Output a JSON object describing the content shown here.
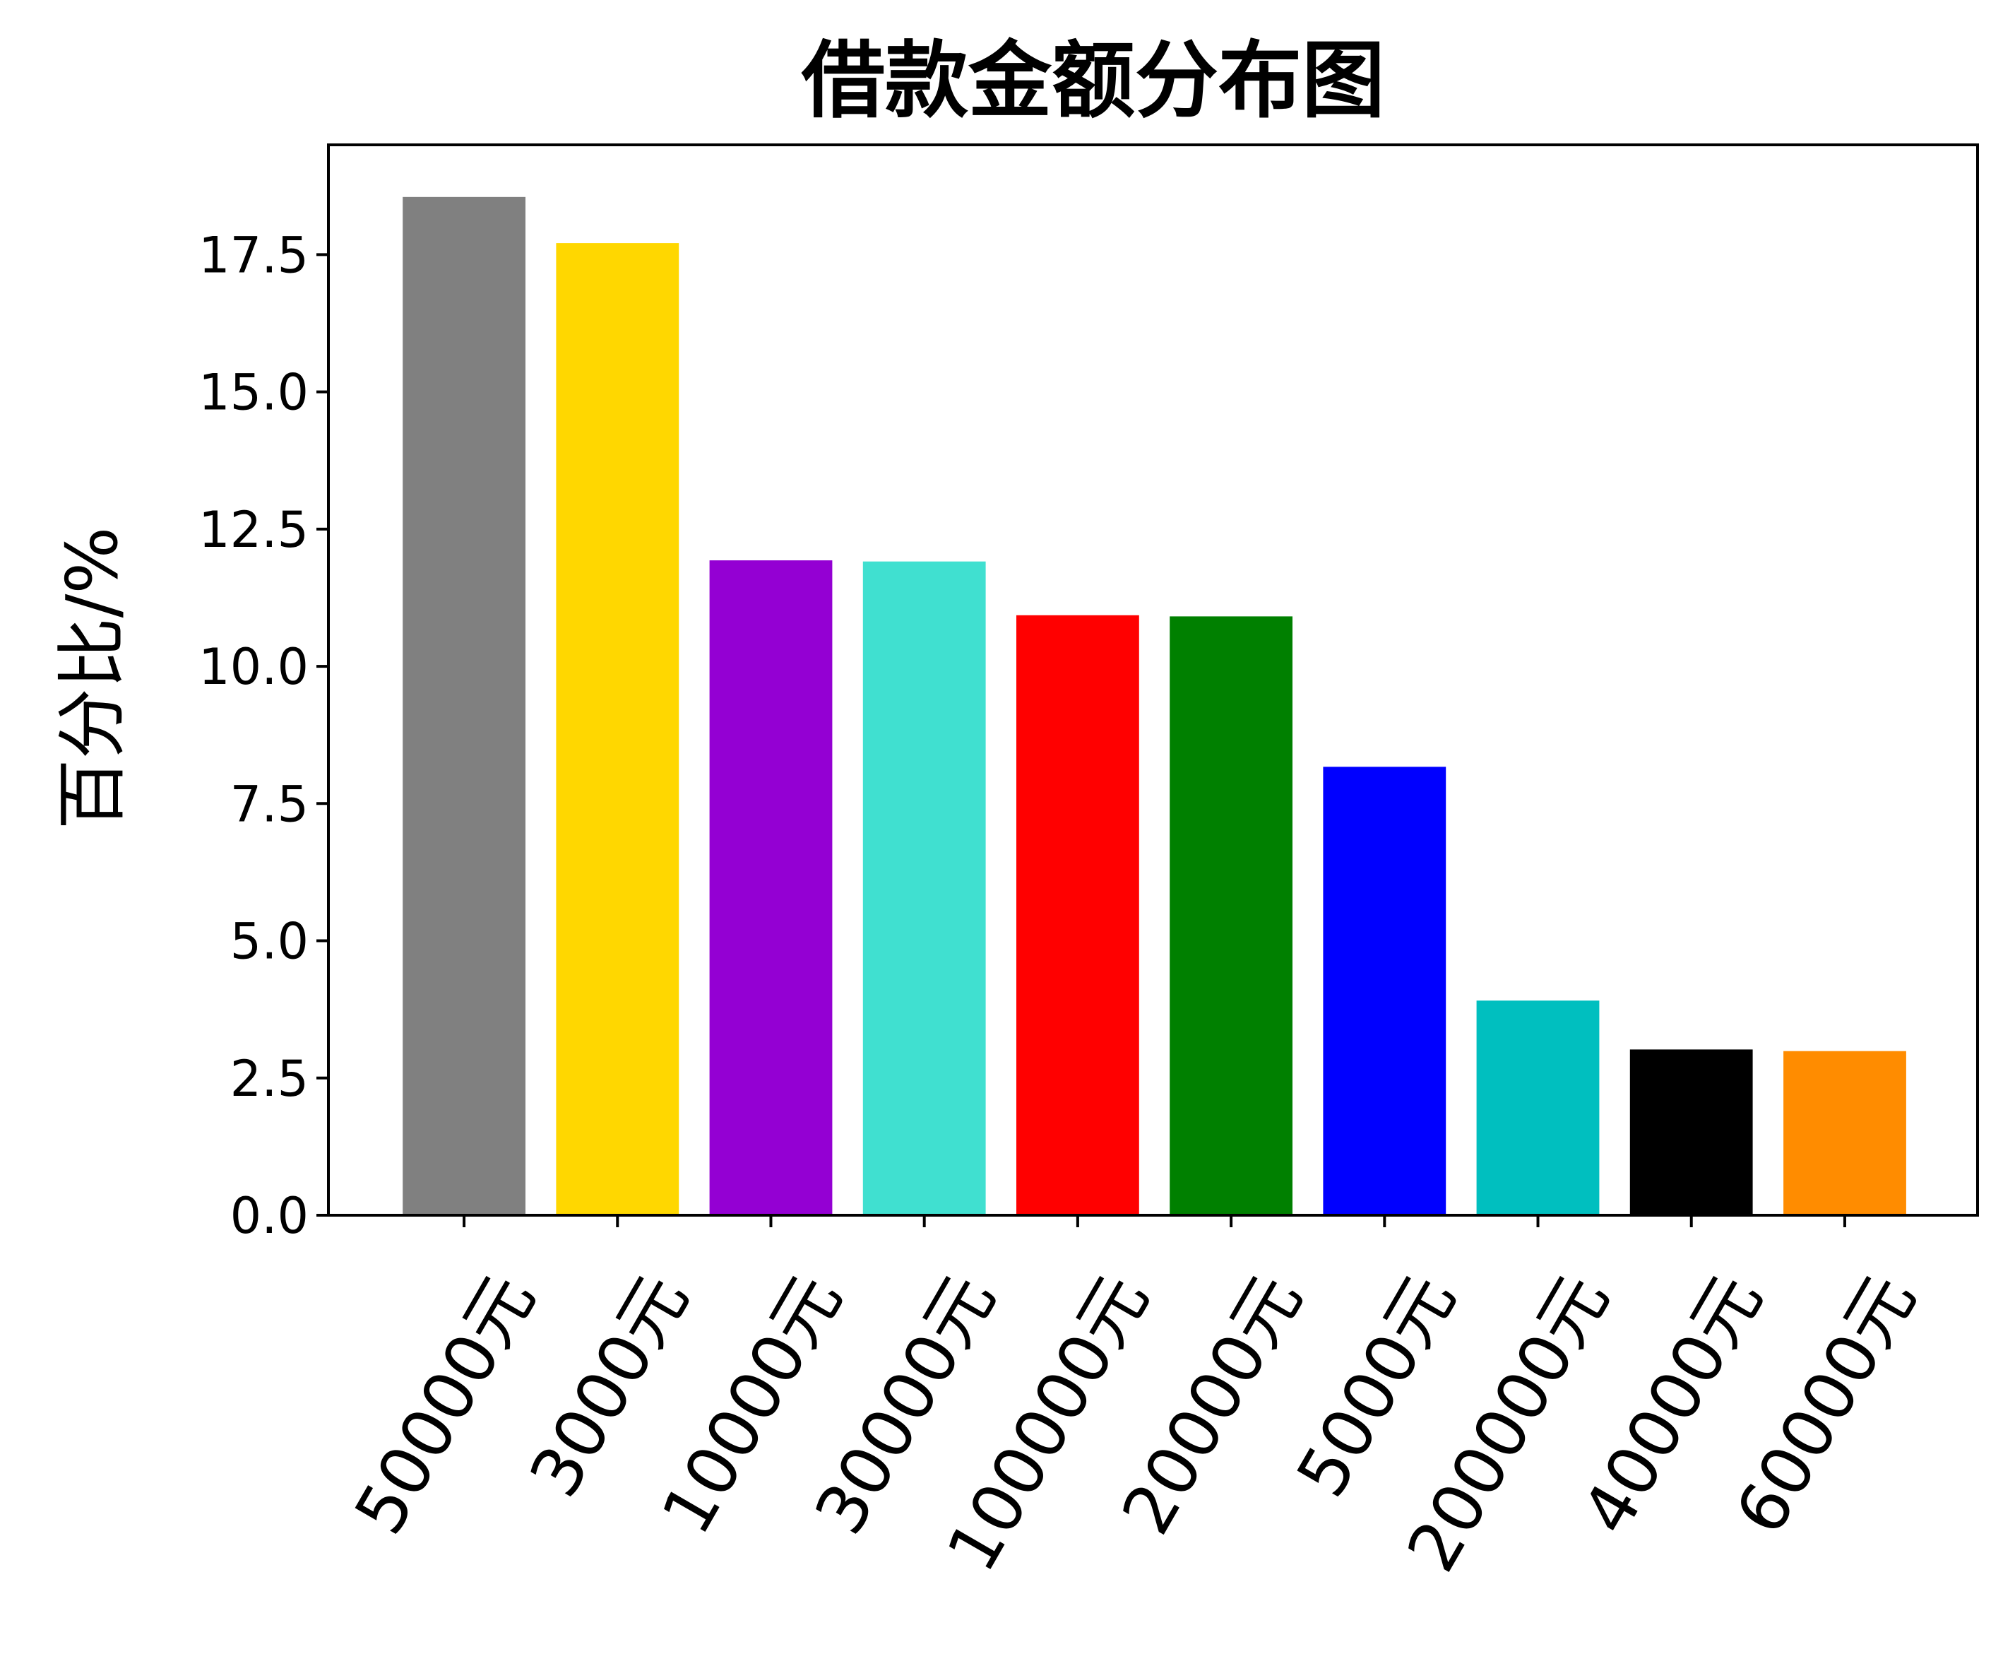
{
  "chart_data": {
    "type": "bar",
    "title": "借款金额分布图",
    "xlabel": "",
    "ylabel": "百分比/%",
    "categories": [
      "50000元",
      "3000元",
      "10000元",
      "30000元",
      "100000元",
      "20000元",
      "5000元",
      "200000元",
      "40000元",
      "60000元"
    ],
    "values": [
      18.55,
      17.71,
      11.93,
      11.91,
      10.93,
      10.91,
      8.17,
      3.91,
      3.02,
      2.99
    ],
    "colors": [
      "#808080",
      "#FFD700",
      "#9400D3",
      "#40E0D0",
      "#FF0000",
      "#008000",
      "#0000FF",
      "#00BFBF",
      "#000000",
      "#FF8C00"
    ],
    "ylim": [
      0,
      19.5
    ],
    "yticks": [
      0.0,
      2.5,
      5.0,
      7.5,
      10.0,
      12.5,
      15.0,
      17.5
    ],
    "ytick_labels": [
      "0.0",
      "2.5",
      "5.0",
      "7.5",
      "10.0",
      "12.5",
      "15.0",
      "17.5"
    ],
    "xtick_rotation_deg": 60,
    "grid": false,
    "legend": "none"
  }
}
